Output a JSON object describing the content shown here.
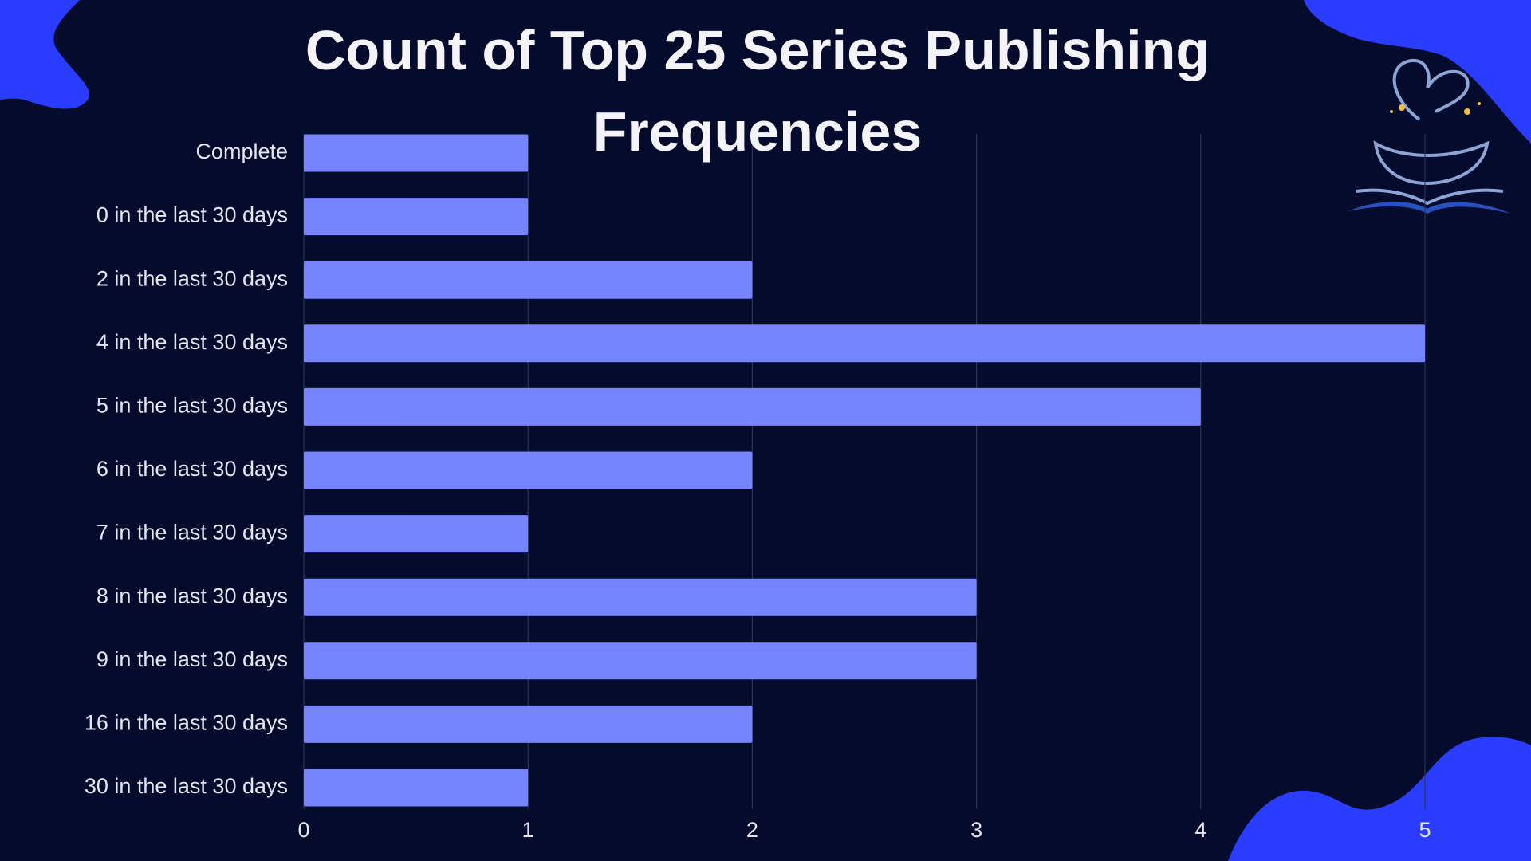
{
  "chart_data": {
    "type": "bar",
    "orientation": "horizontal",
    "title": "Count of Top 25 Series Publishing Frequencies",
    "categories": [
      "Complete",
      "0 in the last 30 days",
      "2 in the last 30 days",
      "4 in the last 30 days",
      "5 in the last 30 days",
      "6 in the last 30 days",
      "7 in the last 30 days",
      "8 in the last 30 days",
      "9 in the last 30 days",
      "16 in the last 30 days",
      "30 in the last 30 days"
    ],
    "values": [
      1,
      1,
      2,
      5,
      4,
      2,
      1,
      3,
      3,
      2,
      1
    ],
    "color": "#7585ff",
    "xlim": [
      0,
      5
    ],
    "xticks": [
      0,
      1,
      2,
      3,
      4,
      5
    ],
    "grid": true
  }
}
